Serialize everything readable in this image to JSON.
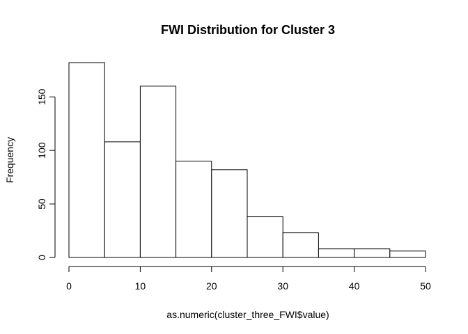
{
  "chart_data": {
    "type": "bar",
    "title": "FWI Distribution for Cluster 3",
    "xlabel": "as.numeric(cluster_three_FWI$value)",
    "ylabel": "Frequency",
    "bins": [
      {
        "from": 0,
        "to": 5,
        "count": 182
      },
      {
        "from": 5,
        "to": 10,
        "count": 108
      },
      {
        "from": 10,
        "to": 15,
        "count": 160
      },
      {
        "from": 15,
        "to": 20,
        "count": 90
      },
      {
        "from": 20,
        "to": 25,
        "count": 82
      },
      {
        "from": 25,
        "to": 30,
        "count": 38
      },
      {
        "from": 30,
        "to": 35,
        "count": 23
      },
      {
        "from": 35,
        "to": 40,
        "count": 8
      },
      {
        "from": 40,
        "to": 45,
        "count": 8
      },
      {
        "from": 45,
        "to": 50,
        "count": 6
      }
    ],
    "xlim": [
      0,
      50
    ],
    "ylim": [
      0,
      182
    ],
    "xticks": [
      "0",
      "10",
      "20",
      "30",
      "40",
      "50"
    ],
    "yticks": [
      "0",
      "50",
      "100",
      "150"
    ],
    "grid": false,
    "colors": {
      "bar_fill": "#ffffff",
      "bar_stroke": "#000000"
    }
  }
}
